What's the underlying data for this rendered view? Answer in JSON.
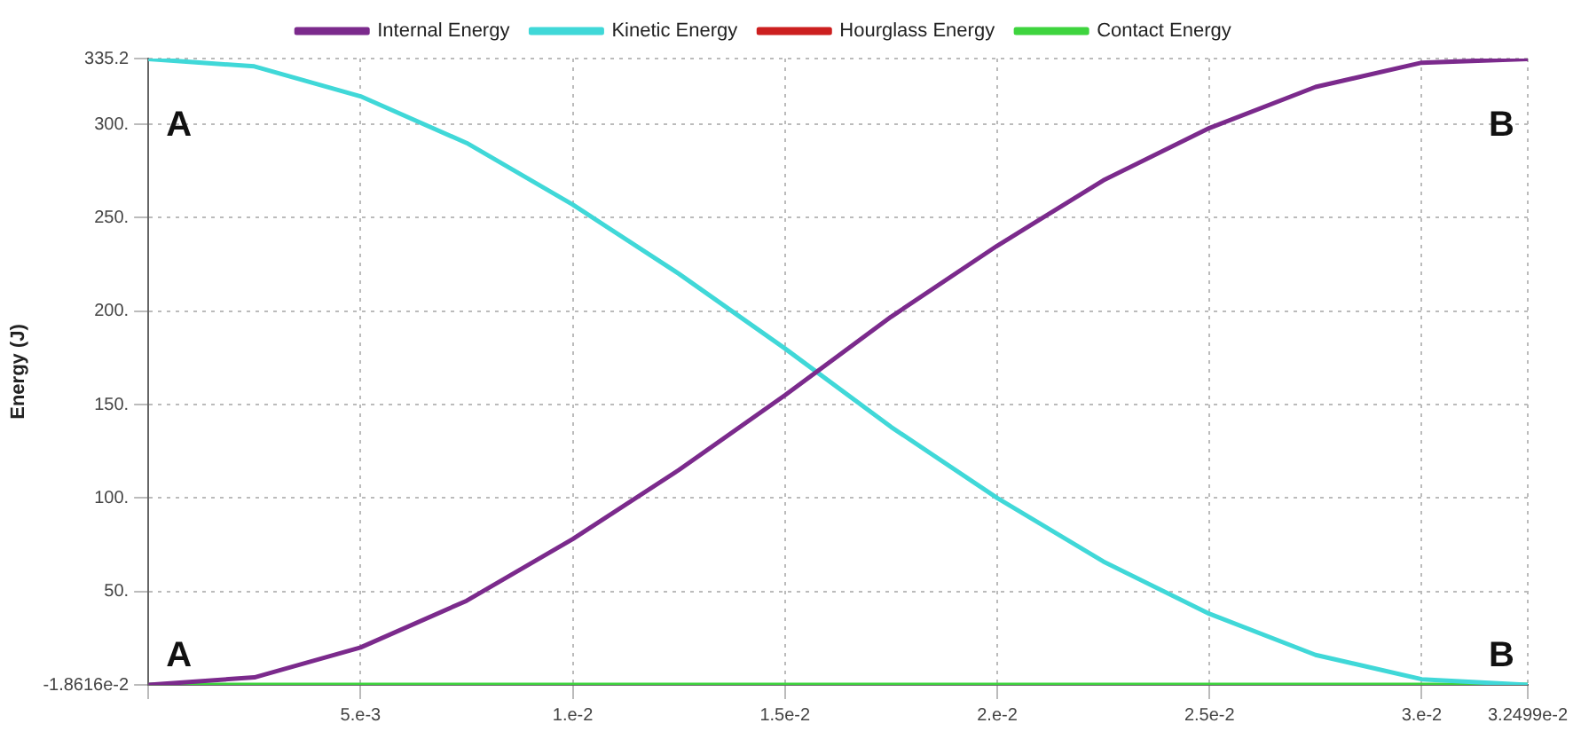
{
  "chart_data": {
    "type": "line",
    "ylabel": "Energy (J)",
    "x": [
      0,
      0.0025,
      0.005,
      0.0075,
      0.01,
      0.0125,
      0.015,
      0.0175,
      0.02,
      0.0225,
      0.025,
      0.0275,
      0.03,
      0.032499
    ],
    "series": [
      {
        "name": "Internal Energy",
        "color": "#7b2a8c",
        "values": [
          0,
          4,
          20,
          45,
          78,
          115,
          155,
          197,
          235,
          270,
          298,
          320,
          333,
          335
        ]
      },
      {
        "name": "Kinetic Energy",
        "color": "#40d8d8",
        "values": [
          335,
          331,
          315,
          290,
          257,
          220,
          180,
          138,
          100,
          66,
          38,
          16,
          3,
          0
        ]
      },
      {
        "name": "Hourglass Energy",
        "color": "#cc1f1f",
        "values": [
          null,
          null,
          null,
          null,
          null,
          null,
          null,
          null,
          null,
          null,
          null,
          null,
          null,
          null
        ]
      },
      {
        "name": "Contact Energy",
        "color": "#3ed43e",
        "values": [
          0,
          0,
          0,
          0,
          0,
          0,
          0,
          0,
          0,
          0,
          0,
          0,
          0,
          0
        ]
      }
    ],
    "xlim": [
      0,
      0.032499
    ],
    "xticks": [
      {
        "value": 0,
        "label": null
      },
      {
        "value": 0.005,
        "label": "5.e-3"
      },
      {
        "value": 0.01,
        "label": "1.e-2"
      },
      {
        "value": 0.015,
        "label": "1.5e-2"
      },
      {
        "value": 0.02,
        "label": "2.e-2"
      },
      {
        "value": 0.025,
        "label": "2.5e-2"
      },
      {
        "value": 0.03,
        "label": "3.e-2"
      },
      {
        "value": 0.032499,
        "label": "3.2499e-2"
      }
    ],
    "ylim": [
      -0.018616,
      335.2
    ],
    "yticks": [
      {
        "value": -0.018616,
        "label": "-1.8616e-2"
      },
      {
        "value": 50,
        "label": "50."
      },
      {
        "value": 100,
        "label": "100."
      },
      {
        "value": 150,
        "label": "150."
      },
      {
        "value": 200,
        "label": "200."
      },
      {
        "value": 250,
        "label": "250."
      },
      {
        "value": 300,
        "label": "300."
      },
      {
        "value": 335.2,
        "label": "335.2"
      }
    ],
    "grid": true,
    "legend": "top",
    "marker": "none",
    "line_style": "solid",
    "annotations": [
      "A",
      "A",
      "B",
      "B"
    ]
  }
}
